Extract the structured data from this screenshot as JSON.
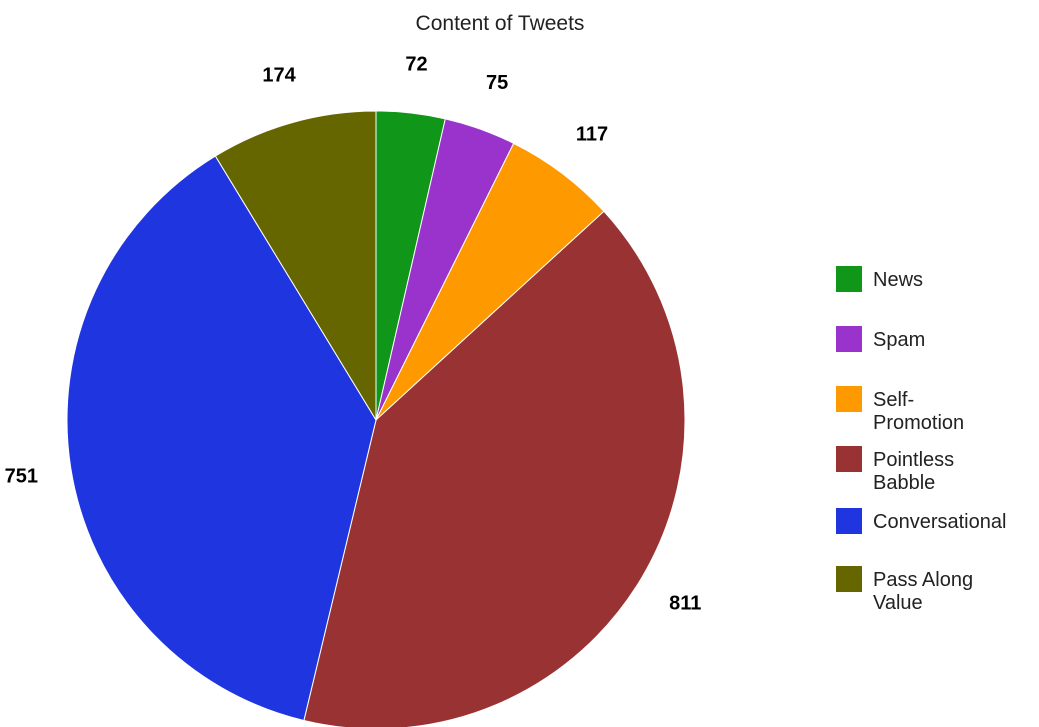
{
  "chart_data": {
    "type": "pie",
    "title": "Content of Tweets",
    "categories": [
      "News",
      "Spam",
      "Self-Promotion",
      "Pointless Babble",
      "Conversational",
      "Pass Along Value"
    ],
    "values": [
      72,
      75,
      117,
      811,
      751,
      174
    ],
    "colors": [
      "#109618",
      "#9933cc",
      "#ff9900",
      "#993333",
      "#1f35e0",
      "#666600"
    ],
    "legend_lines": [
      [
        "News"
      ],
      [
        "Spam"
      ],
      [
        "Self-",
        "Promotion"
      ],
      [
        "Pointless",
        "Babble"
      ],
      [
        "Conversational"
      ],
      [
        "Pass Along",
        "Value"
      ]
    ],
    "start_angle": "12 o'clock",
    "direction": "clockwise",
    "legend_position": "right"
  }
}
